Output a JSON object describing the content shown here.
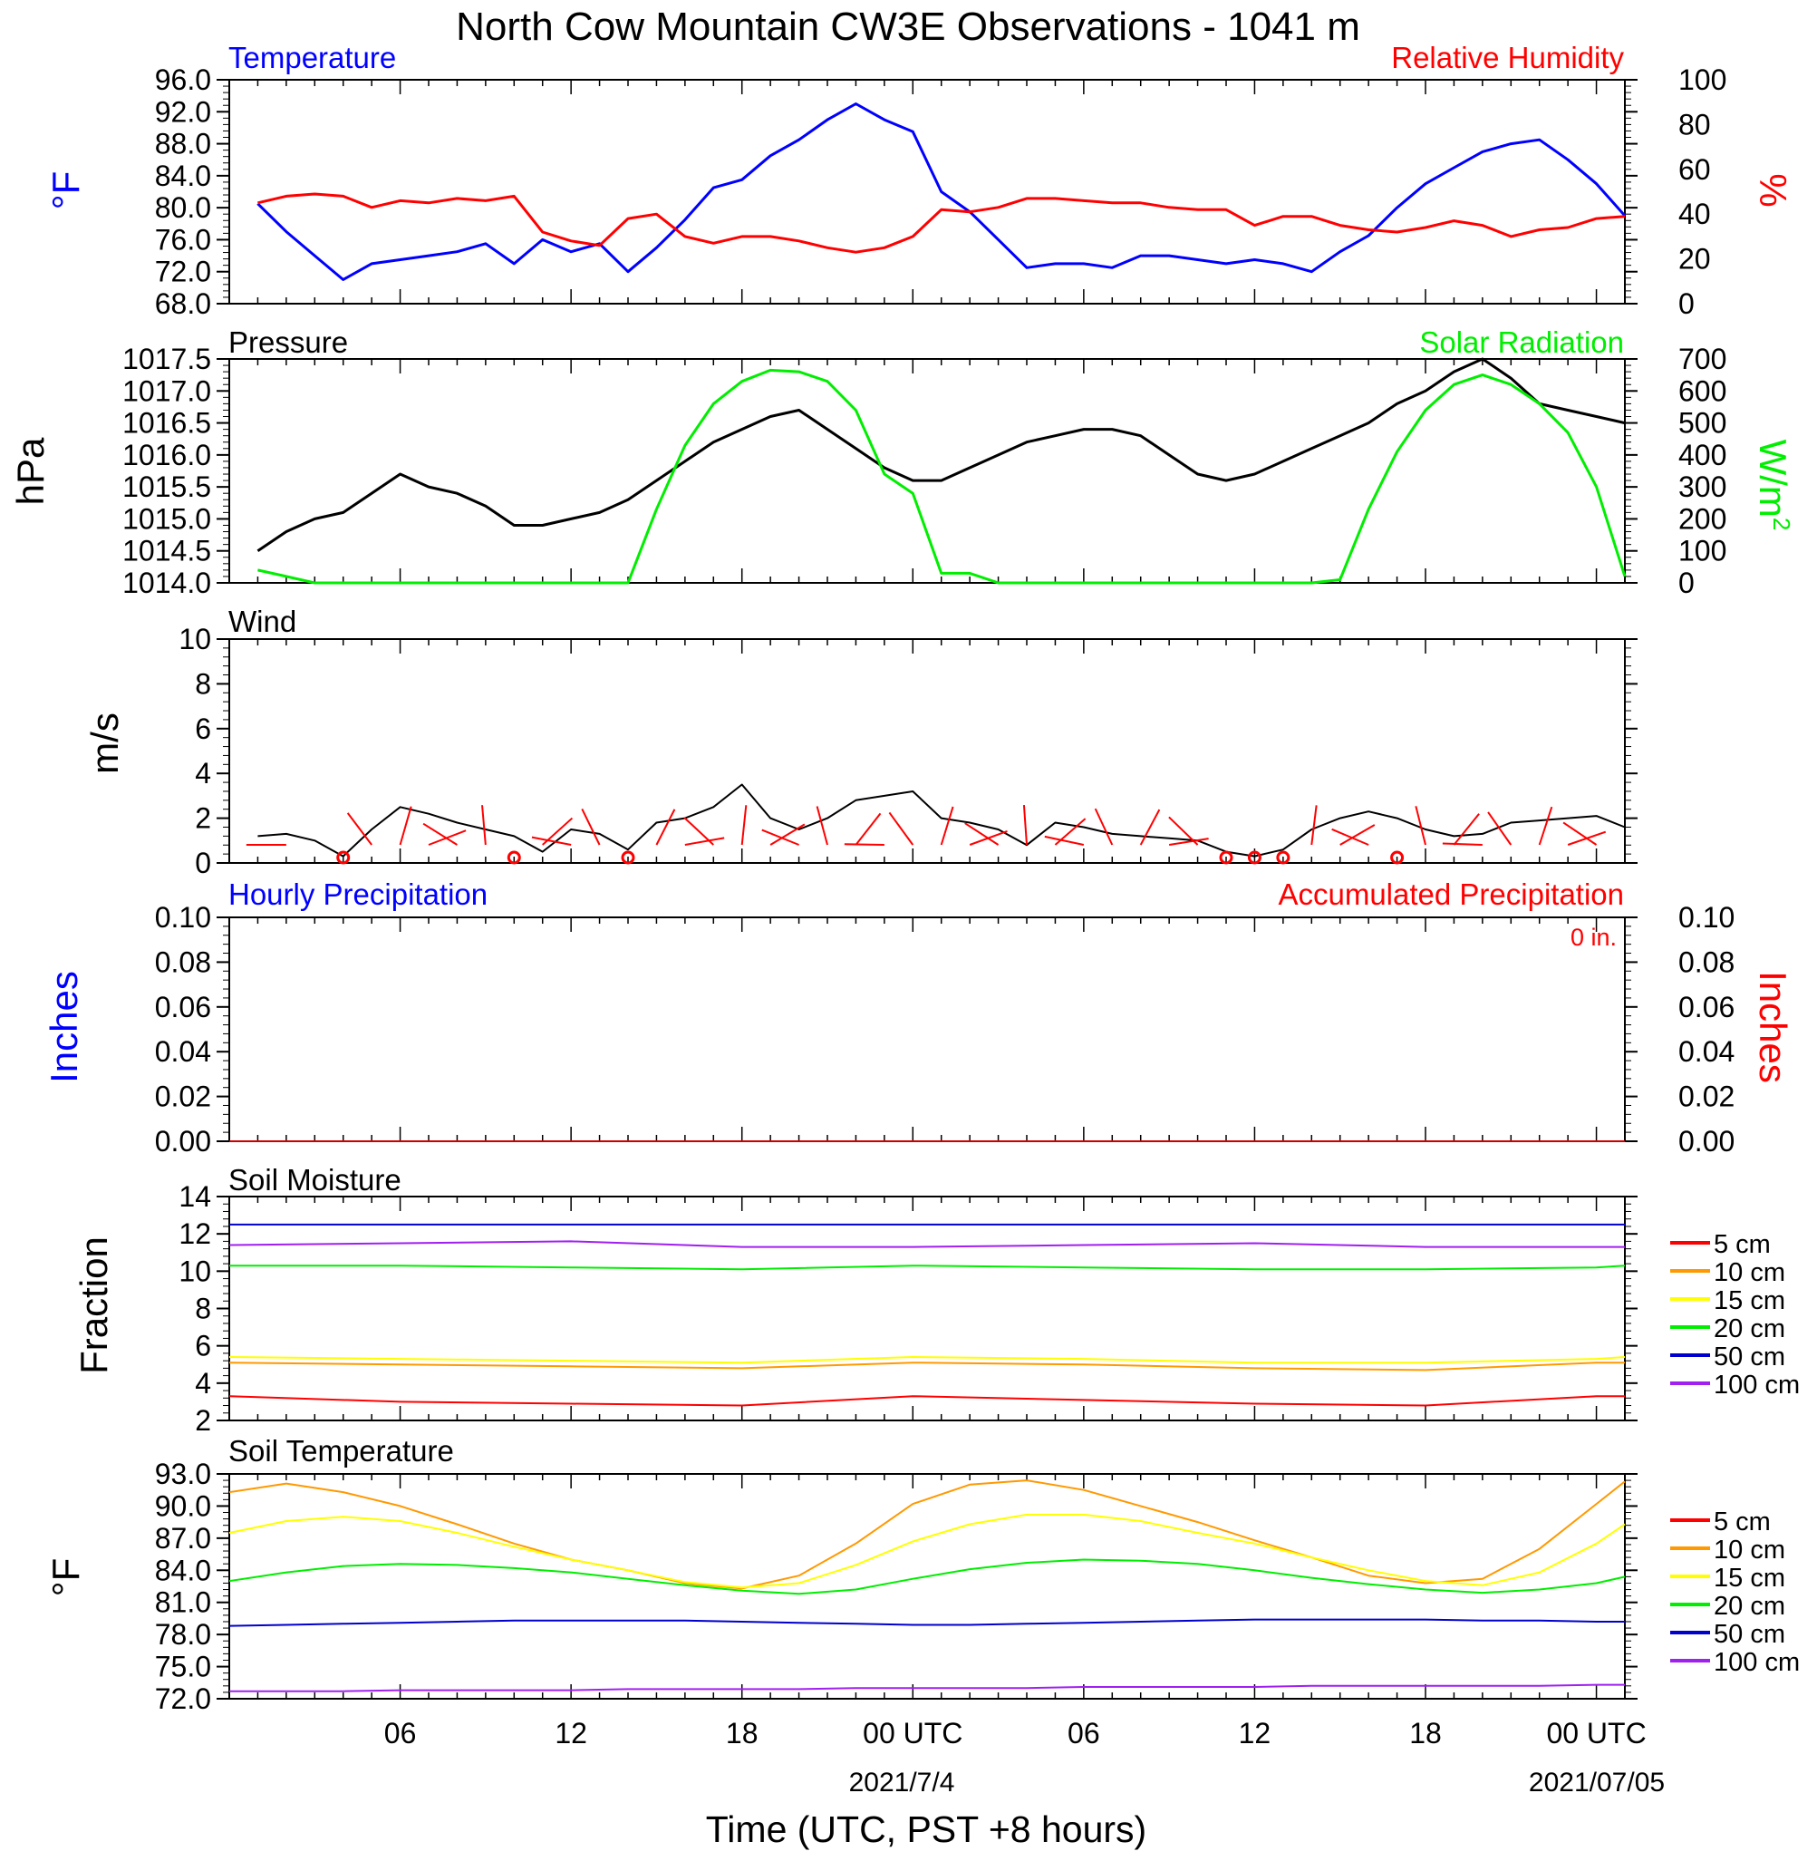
{
  "figure": {
    "title": "North Cow Mountain CW3E Observations - 1041 m",
    "xlabel": "Time (UTC, PST +8 hours)",
    "x_tick_labels": [
      "06",
      "12",
      "18",
      "00 UTC",
      "06",
      "12",
      "18",
      "00 UTC"
    ],
    "x_date_labels": [
      "2021/7/4",
      "2021/07/05"
    ]
  },
  "chart_data": [
    {
      "id": "temperature_rh",
      "type": "line",
      "left_title": "Temperature",
      "right_title": "Relative Humidity",
      "left_unit": "°F",
      "right_unit": "%",
      "left_ticks": [
        "96.0",
        "92.0",
        "88.0",
        "84.0",
        "80.0",
        "76.0",
        "72.0",
        "68.0"
      ],
      "right_ticks": [
        "100",
        "80",
        "60",
        "40",
        "20",
        "0"
      ],
      "ylim_left": [
        68,
        96
      ],
      "ylim_right": [
        0,
        100
      ],
      "x_hours": [
        1,
        2,
        3,
        4,
        5,
        6,
        7,
        8,
        9,
        10,
        11,
        12,
        13,
        14,
        15,
        16,
        17,
        18,
        19,
        20,
        21,
        22,
        23,
        24,
        25,
        26,
        27,
        28,
        29,
        30,
        31,
        32,
        33,
        34,
        35,
        36,
        37,
        38,
        39,
        40,
        41,
        42,
        43,
        44,
        45,
        46,
        47,
        48,
        49
      ],
      "series": [
        {
          "name": "Temperature",
          "axis": "left",
          "color": "#0000ff",
          "width": 3,
          "values": [
            80.5,
            77.0,
            74.0,
            71.0,
            73.0,
            73.5,
            74.0,
            74.5,
            75.5,
            73.0,
            76.0,
            74.5,
            75.5,
            72.0,
            75.0,
            78.5,
            82.5,
            83.5,
            86.5,
            88.5,
            91.0,
            93.0,
            91.0,
            89.5,
            82.0,
            79.5,
            76.0,
            72.5,
            73.0,
            73.0,
            72.5,
            74.0,
            74.0,
            73.5,
            73.0,
            73.5,
            73.0,
            72.0,
            74.5,
            76.5,
            80.0,
            83.0,
            85.0,
            87.0,
            88.0,
            88.5,
            86.0,
            83.0,
            79.0
          ]
        },
        {
          "name": "Relative Humidity",
          "axis": "right",
          "color": "#ff0000",
          "width": 3,
          "values": [
            45,
            48,
            49,
            48,
            43,
            46,
            45,
            47,
            46,
            48,
            32,
            28,
            26,
            38,
            40,
            30,
            27,
            30,
            30,
            28,
            25,
            23,
            25,
            30,
            42,
            41,
            43,
            47,
            47,
            46,
            45,
            45,
            43,
            42,
            42,
            35,
            39,
            39,
            35,
            33,
            32,
            34,
            37,
            35,
            30,
            33,
            34,
            38,
            39
          ]
        }
      ]
    },
    {
      "id": "pressure_solar",
      "type": "line",
      "left_title": "Pressure",
      "right_title": "Solar Radiation",
      "left_unit": "hPa",
      "right_unit": "W/m2",
      "left_ticks": [
        "1017.5",
        "1017.0",
        "1016.5",
        "1016.0",
        "1015.5",
        "1015.0",
        "1014.5",
        "1014.0"
      ],
      "right_ticks": [
        "700",
        "600",
        "500",
        "400",
        "300",
        "200",
        "100",
        "0"
      ],
      "ylim_left": [
        1014.0,
        1017.5
      ],
      "ylim_right": [
        0,
        700
      ],
      "x_hours": [
        1,
        2,
        3,
        4,
        5,
        6,
        7,
        8,
        9,
        10,
        11,
        12,
        13,
        14,
        15,
        16,
        17,
        18,
        19,
        20,
        21,
        22,
        23,
        24,
        25,
        26,
        27,
        28,
        29,
        30,
        31,
        32,
        33,
        34,
        35,
        36,
        37,
        38,
        39,
        40,
        41,
        42,
        43,
        44,
        45,
        46,
        47,
        48,
        49
      ],
      "series": [
        {
          "name": "Pressure",
          "axis": "left",
          "color": "#000000",
          "width": 3,
          "values": [
            1014.5,
            1014.8,
            1015.0,
            1015.1,
            1015.4,
            1015.7,
            1015.5,
            1015.4,
            1015.2,
            1014.9,
            1014.9,
            1015.0,
            1015.1,
            1015.3,
            1015.6,
            1015.9,
            1016.2,
            1016.4,
            1016.6,
            1016.7,
            1016.4,
            1016.1,
            1015.8,
            1015.6,
            1015.6,
            1015.8,
            1016.0,
            1016.2,
            1016.3,
            1016.4,
            1016.4,
            1016.3,
            1016.0,
            1015.7,
            1015.6,
            1015.7,
            1015.9,
            1016.1,
            1016.3,
            1016.5,
            1016.8,
            1017.0,
            1017.3,
            1017.5,
            1017.2,
            1016.8,
            1016.7,
            1016.6,
            1016.5
          ]
        },
        {
          "name": "Solar Radiation",
          "axis": "right",
          "color": "#00ee00",
          "width": 3,
          "values": [
            40,
            20,
            0,
            0,
            0,
            0,
            0,
            0,
            0,
            0,
            0,
            0,
            0,
            0,
            230,
            430,
            560,
            630,
            665,
            660,
            630,
            540,
            340,
            280,
            30,
            30,
            0,
            0,
            0,
            0,
            0,
            0,
            0,
            0,
            0,
            0,
            0,
            0,
            10,
            230,
            410,
            540,
            620,
            650,
            620,
            560,
            470,
            300,
            20
          ]
        }
      ]
    },
    {
      "id": "wind",
      "type": "line",
      "left_title": "Wind",
      "left_unit": "m/s",
      "left_ticks": [
        "10",
        "8",
        "6",
        "4",
        "2",
        "0"
      ],
      "ylim_left": [
        0,
        10
      ],
      "x_hours": [
        1,
        2,
        3,
        4,
        5,
        6,
        7,
        8,
        9,
        10,
        11,
        12,
        13,
        14,
        15,
        16,
        17,
        18,
        19,
        20,
        21,
        22,
        23,
        24,
        25,
        26,
        27,
        28,
        29,
        30,
        31,
        32,
        33,
        34,
        35,
        36,
        37,
        38,
        39,
        40,
        41,
        42,
        43,
        44,
        45,
        46,
        47,
        48,
        49
      ],
      "series": [
        {
          "name": "Wind Speed",
          "axis": "left",
          "color": "#000000",
          "width": 2,
          "values": [
            1.2,
            1.3,
            1.0,
            0.3,
            1.5,
            2.5,
            2.2,
            1.8,
            1.5,
            1.2,
            0.5,
            1.5,
            1.3,
            0.6,
            1.8,
            2.0,
            2.5,
            3.5,
            2.0,
            1.5,
            2.0,
            2.8,
            3.0,
            3.2,
            2.0,
            1.8,
            1.5,
            0.8,
            1.8,
            1.6,
            1.3,
            1.2,
            1.1,
            1.0,
            0.5,
            0.3,
            0.6,
            1.5,
            2.0,
            2.3,
            2.0,
            1.5,
            1.2,
            1.3,
            1.8,
            1.9,
            2.0,
            2.1,
            1.6
          ]
        }
      ],
      "barbs": {
        "color": "#ff0000",
        "calm_hours": [
          4,
          10,
          14,
          35,
          36,
          37,
          41
        ],
        "direction_hours": [
          2,
          5,
          6,
          7,
          8,
          9,
          11,
          12,
          13,
          15,
          16,
          17,
          18,
          19,
          20,
          21,
          22,
          23,
          24,
          25,
          26,
          27,
          28,
          29,
          30,
          31,
          32,
          33,
          34,
          38,
          39,
          40,
          42,
          43,
          44,
          45,
          46,
          47,
          48
        ]
      }
    },
    {
      "id": "precipitation",
      "type": "line",
      "left_title": "Hourly Precipitation",
      "right_title": "Accumulated Precipitation",
      "annotation": "0 in.",
      "left_unit": "Inches",
      "right_unit": "Inches",
      "left_ticks": [
        "0.10",
        "0.08",
        "0.06",
        "0.04",
        "0.02",
        "0.00"
      ],
      "right_ticks": [
        "0.10",
        "0.08",
        "0.06",
        "0.04",
        "0.02",
        "0.00"
      ],
      "ylim_left": [
        0,
        0.1
      ],
      "ylim_right": [
        0,
        0.1
      ],
      "x_hours": [
        0,
        49
      ],
      "series": [
        {
          "name": "Hourly Precipitation",
          "axis": "left",
          "color": "#0000ff",
          "width": 2,
          "values": [
            0,
            0
          ]
        },
        {
          "name": "Accumulated Precipitation",
          "axis": "right",
          "color": "#cc0000",
          "width": 2,
          "values": [
            0,
            0
          ]
        }
      ]
    },
    {
      "id": "soil_moisture",
      "type": "line",
      "left_title": "Soil Moisture",
      "left_unit": "Fraction",
      "left_ticks": [
        "14",
        "12",
        "10",
        "8",
        "6",
        "4",
        "2"
      ],
      "ylim_left": [
        2,
        14
      ],
      "legend": [
        "5 cm",
        "10 cm",
        "15 cm",
        "20 cm",
        "50 cm",
        "100 cm"
      ],
      "x_hours": [
        0,
        6,
        12,
        18,
        24,
        30,
        36,
        42,
        48,
        49
      ],
      "series": [
        {
          "name": "5 cm",
          "axis": "left",
          "color": "#ff0000",
          "width": 2,
          "values": [
            3.3,
            3.0,
            2.9,
            2.8,
            3.3,
            3.1,
            2.9,
            2.8,
            3.3,
            3.3
          ]
        },
        {
          "name": "10 cm",
          "axis": "left",
          "color": "#ff9900",
          "width": 2,
          "values": [
            5.1,
            5.0,
            4.9,
            4.8,
            5.1,
            5.0,
            4.8,
            4.7,
            5.1,
            5.1
          ]
        },
        {
          "name": "15 cm",
          "axis": "left",
          "color": "#ffff00",
          "width": 2,
          "values": [
            5.4,
            5.3,
            5.2,
            5.1,
            5.4,
            5.3,
            5.1,
            5.1,
            5.3,
            5.4
          ]
        },
        {
          "name": "20 cm",
          "axis": "left",
          "color": "#00ee00",
          "width": 2,
          "values": [
            10.3,
            10.3,
            10.2,
            10.1,
            10.3,
            10.2,
            10.1,
            10.1,
            10.2,
            10.3
          ]
        },
        {
          "name": "50 cm",
          "axis": "left",
          "color": "#0000cc",
          "width": 2,
          "values": [
            12.5,
            12.5,
            12.5,
            12.5,
            12.5,
            12.5,
            12.5,
            12.5,
            12.5,
            12.5
          ]
        },
        {
          "name": "100 cm",
          "axis": "left",
          "color": "#a020f0",
          "width": 2,
          "values": [
            11.4,
            11.5,
            11.6,
            11.3,
            11.3,
            11.4,
            11.5,
            11.3,
            11.3,
            11.3
          ]
        }
      ]
    },
    {
      "id": "soil_temperature",
      "type": "line",
      "left_title": "Soil Temperature",
      "left_unit": "°F",
      "left_ticks": [
        "93.0",
        "90.0",
        "87.0",
        "84.0",
        "81.0",
        "78.0",
        "75.0",
        "72.0"
      ],
      "ylim_left": [
        72,
        93
      ],
      "legend": [
        "5 cm",
        "10 cm",
        "15 cm",
        "20 cm",
        "50 cm",
        "100 cm"
      ],
      "x_hours": [
        0,
        2,
        4,
        6,
        8,
        10,
        12,
        14,
        16,
        18,
        20,
        22,
        24,
        26,
        28,
        30,
        32,
        34,
        36,
        38,
        40,
        42,
        44,
        46,
        48,
        49
      ],
      "series": [
        {
          "name": "10 cm",
          "axis": "left",
          "color": "#ff9900",
          "width": 2,
          "values": [
            91.3,
            92.1,
            91.3,
            90.0,
            88.3,
            86.5,
            85.0,
            84.0,
            82.8,
            82.3,
            83.5,
            86.5,
            90.2,
            92.0,
            92.4,
            91.5,
            90.0,
            88.5,
            86.8,
            85.2,
            83.5,
            82.8,
            83.2,
            86.0,
            90.2,
            92.3
          ]
        },
        {
          "name": "15 cm",
          "axis": "left",
          "color": "#ffff00",
          "width": 2,
          "values": [
            87.5,
            88.6,
            89.0,
            88.6,
            87.5,
            86.2,
            85.0,
            84.0,
            82.9,
            82.4,
            82.8,
            84.5,
            86.7,
            88.3,
            89.2,
            89.2,
            88.6,
            87.5,
            86.5,
            85.2,
            84.0,
            83.0,
            82.6,
            83.8,
            86.5,
            88.3
          ]
        },
        {
          "name": "20 cm",
          "axis": "left",
          "color": "#00ee00",
          "width": 2,
          "values": [
            83.0,
            83.8,
            84.4,
            84.6,
            84.5,
            84.2,
            83.8,
            83.2,
            82.6,
            82.1,
            81.8,
            82.2,
            83.2,
            84.1,
            84.7,
            85.0,
            84.9,
            84.6,
            84.0,
            83.3,
            82.7,
            82.2,
            81.9,
            82.2,
            82.8,
            83.4
          ]
        },
        {
          "name": "50 cm",
          "axis": "left",
          "color": "#0000cc",
          "width": 2,
          "values": [
            78.8,
            78.9,
            79.0,
            79.1,
            79.2,
            79.3,
            79.3,
            79.3,
            79.3,
            79.2,
            79.1,
            79.0,
            78.9,
            78.9,
            79.0,
            79.1,
            79.2,
            79.3,
            79.4,
            79.4,
            79.4,
            79.4,
            79.3,
            79.3,
            79.2,
            79.2
          ]
        },
        {
          "name": "100 cm",
          "axis": "left",
          "color": "#a020f0",
          "width": 2,
          "values": [
            72.7,
            72.7,
            72.7,
            72.8,
            72.8,
            72.8,
            72.8,
            72.9,
            72.9,
            72.9,
            72.9,
            73.0,
            73.0,
            73.0,
            73.0,
            73.1,
            73.1,
            73.1,
            73.1,
            73.2,
            73.2,
            73.2,
            73.2,
            73.2,
            73.3,
            73.3
          ]
        }
      ]
    }
  ]
}
